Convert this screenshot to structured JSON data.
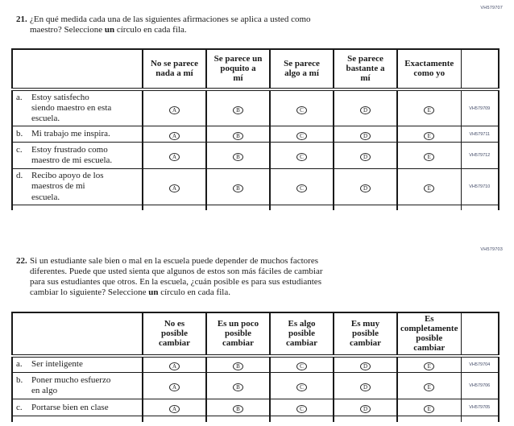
{
  "options": [
    "A",
    "B",
    "C",
    "D",
    "E"
  ],
  "questions": [
    {
      "code": "VH579707",
      "number": "21.",
      "text_pre": "¿En qué medida cada una de las siguientes afirmaciones se aplica a usted como\nmaestro? Seleccione ",
      "text_bold": "un",
      "text_post": " círculo en cada fila.",
      "headers": [
        "No se parece\nnada a mí",
        "Se parece un\npoquito a\nmí",
        "Se parece\nalgo a mí",
        "Se parece\nbastante a\nmí",
        "Exactamente\ncomo yo"
      ],
      "rows": [
        {
          "letter": "a.",
          "text": "Estoy satisfecho\nsiendo maestro en esta\nescuela.",
          "code": "VH579709"
        },
        {
          "letter": "b.",
          "text": "Mi trabajo me inspira.",
          "code": "VH579711"
        },
        {
          "letter": "c.",
          "text": "Estoy frustrado como\nmaestro de mi escuela.",
          "code": "VH579712"
        },
        {
          "letter": "d.",
          "text": "Recibo apoyo de los\nmaestros de mi\nescuela.",
          "code": "VH579710"
        }
      ]
    },
    {
      "code": "VH579703",
      "number": "22.",
      "text_pre": "Si un estudiante sale bien o mal en la escuela puede depender de muchos factores\ndiferentes. Puede que usted sienta que algunos de estos son más fáciles de cambiar\npara sus estudiantes que otros. En la escuela, ¿cuán posible es para sus estudiantes\ncambiar lo siguiente? Seleccione ",
      "text_bold": "un",
      "text_post": " círculo en cada fila.",
      "headers": [
        "No es\nposible\ncambiar",
        "Es un poco\nposible\ncambiar",
        "Es algo\nposible\ncambiar",
        "Es muy\nposible\ncambiar",
        "Es\ncompletamente\nposible\ncambiar"
      ],
      "rows": [
        {
          "letter": "a.",
          "text": "Ser inteligente",
          "code": "VH579704"
        },
        {
          "letter": "b.",
          "text": "Poner mucho esfuerzo\nen algo",
          "code": "VH579706"
        },
        {
          "letter": "c.",
          "text": "Portarse bien en clase",
          "code": "VH579705"
        }
      ]
    }
  ]
}
